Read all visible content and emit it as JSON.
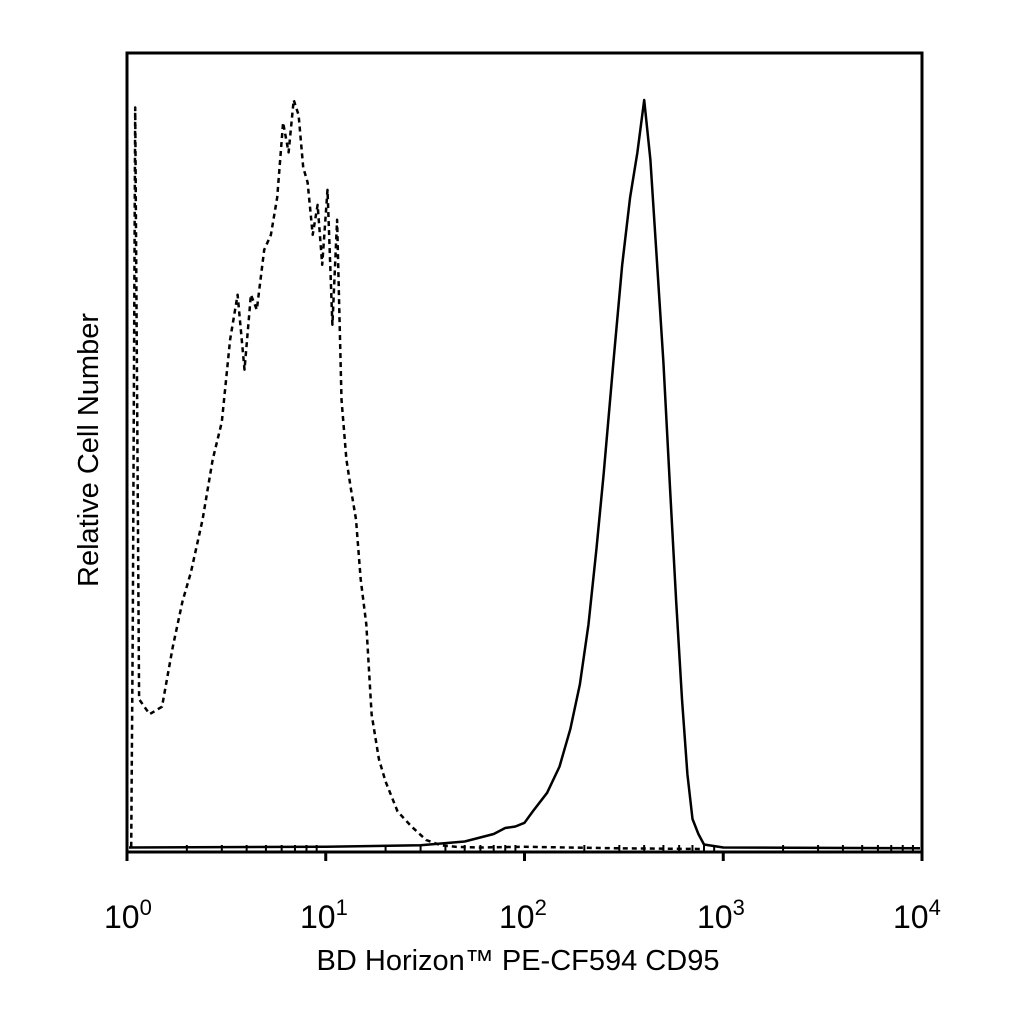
{
  "chart_data": {
    "type": "line",
    "xlabel": "BD Horizon™ PE-CF594 CD95",
    "ylabel": "Relative Cell Number",
    "x_scale": "log",
    "xlim": [
      1,
      10000
    ],
    "ylim": [
      0,
      100
    ],
    "grid": false,
    "legend": "none",
    "x_ticks": [
      {
        "value": 1,
        "base": "10",
        "exp": "0"
      },
      {
        "value": 10,
        "base": "10",
        "exp": "1"
      },
      {
        "value": 100,
        "base": "10",
        "exp": "2"
      },
      {
        "value": 1000,
        "base": "10",
        "exp": "3"
      },
      {
        "value": 10000,
        "base": "10",
        "exp": "4"
      }
    ],
    "series": [
      {
        "style": "dashed",
        "color": "#000000",
        "x": [
          1.05,
          1.07,
          1.1,
          1.15,
          1.3,
          1.5,
          1.7,
          1.9,
          2.1,
          2.4,
          2.7,
          3.0,
          3.3,
          3.6,
          3.9,
          4.2,
          4.5,
          4.9,
          5.3,
          5.7,
          6.1,
          6.5,
          6.9,
          7.3,
          7.7,
          8.1,
          8.6,
          9.1,
          9.6,
          10.2,
          10.8,
          11.4,
          12.0,
          12.7,
          13.4,
          14.2,
          15.0,
          16.0,
          17.0,
          18.5,
          20.0,
          23.0,
          27.0,
          32.0,
          38.0,
          45.0,
          60.0,
          100.0,
          300.0,
          800.0
        ],
        "y": [
          0.3,
          30,
          99,
          20,
          18,
          19,
          27,
          33,
          37,
          44,
          52,
          57,
          68,
          74,
          64,
          74,
          72,
          80,
          82,
          87,
          97,
          93,
          100,
          98,
          91,
          89,
          82,
          86,
          78,
          88,
          70,
          84,
          60,
          52,
          48,
          44,
          36,
          30,
          18,
          12,
          9,
          5,
          3,
          1.2,
          0.5,
          0.3,
          0.2,
          0.3,
          0.1,
          0.0
        ]
      },
      {
        "style": "solid",
        "color": "#000000",
        "x": [
          1.0,
          10.0,
          30.0,
          50.0,
          70.0,
          80.0,
          90.0,
          100.0,
          110.0,
          130.0,
          150.0,
          170.0,
          190.0,
          210.0,
          230.0,
          250.0,
          280.0,
          310.0,
          340.0,
          370.0,
          400.0,
          430.0,
          460.0,
          500.0,
          540.0,
          580.0,
          620.0,
          660.0,
          700.0,
          750.0,
          800.0,
          1000.0,
          10000.0
        ],
        "y": [
          0.2,
          0.3,
          0.5,
          1.0,
          2.0,
          2.8,
          3.0,
          3.5,
          5.0,
          7.5,
          11,
          16,
          22,
          30,
          40,
          50,
          65,
          78,
          87,
          93,
          100,
          92,
          80,
          65,
          48,
          33,
          20,
          10,
          4,
          2,
          0.6,
          0.2,
          0.1
        ]
      }
    ]
  }
}
